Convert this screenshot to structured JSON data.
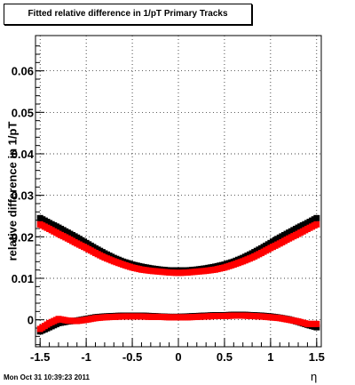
{
  "title": "Fitted relative difference in 1/pT  Primary Tracks",
  "footer_timestamp": "Mon Oct 31 10:39:23 2011",
  "colors": {
    "series_black": "#000000",
    "series_red": "#ff0000",
    "grid": "#000000"
  },
  "chart_data": {
    "type": "scatter",
    "title": "Fitted relative difference in 1/pT  Primary Tracks",
    "xlabel": "η",
    "ylabel": "relative difference in 1/pT",
    "xlim": [
      -1.55,
      1.55
    ],
    "ylim": [
      -0.0065,
      0.0685
    ],
    "x_ticks": [
      -1.5,
      -1,
      -0.5,
      0,
      0.5,
      1,
      1.5
    ],
    "x_tick_labels": [
      "-1.5",
      "-1",
      "-0.5",
      "0",
      "0.5",
      "1",
      "1.5"
    ],
    "y_ticks": [
      0,
      0.01,
      0.02,
      0.03,
      0.04,
      0.05,
      0.06
    ],
    "y_tick_labels": [
      "0",
      "0.01",
      "0.02",
      "0.03",
      "0.04",
      "0.05",
      "0.06"
    ],
    "grid": true,
    "series": [
      {
        "color": "#000000",
        "x": [
          -1.5,
          -1.4,
          -1.3,
          -1.2,
          -1.1,
          -1.0,
          -0.9,
          -0.8,
          -0.7,
          -0.6,
          -0.5,
          -0.4,
          -0.3,
          -0.2,
          -0.1,
          0.0,
          0.1,
          0.2,
          0.3,
          0.4,
          0.5,
          0.6,
          0.7,
          0.8,
          0.9,
          1.0,
          1.1,
          1.2,
          1.3,
          1.4,
          1.5
        ],
        "y": [
          0.0245,
          0.0233,
          0.0222,
          0.021,
          0.0198,
          0.0185,
          0.0172,
          0.016,
          0.0149,
          0.014,
          0.0133,
          0.0128,
          0.0124,
          0.0121,
          0.0119,
          0.0119,
          0.0119,
          0.0121,
          0.0124,
          0.0128,
          0.0133,
          0.014,
          0.0149,
          0.016,
          0.0172,
          0.0185,
          0.0198,
          0.021,
          0.0222,
          0.0233,
          0.0245
        ]
      },
      {
        "color": "#ff0000",
        "x": [
          -1.5,
          -1.4,
          -1.3,
          -1.2,
          -1.1,
          -1.0,
          -0.9,
          -0.8,
          -0.7,
          -0.6,
          -0.5,
          -0.4,
          -0.3,
          -0.2,
          -0.1,
          0.0,
          0.1,
          0.2,
          0.3,
          0.4,
          0.5,
          0.6,
          0.7,
          0.8,
          0.9,
          1.0,
          1.1,
          1.2,
          1.3,
          1.4,
          1.5
        ],
        "y": [
          0.023,
          0.0219,
          0.0207,
          0.0196,
          0.0184,
          0.0173,
          0.0161,
          0.015,
          0.0141,
          0.0133,
          0.0126,
          0.0121,
          0.0118,
          0.0116,
          0.0114,
          0.0113,
          0.0114,
          0.0116,
          0.0118,
          0.0121,
          0.0126,
          0.0133,
          0.0141,
          0.015,
          0.0161,
          0.0173,
          0.0184,
          0.0196,
          0.0207,
          0.0219,
          0.023
        ]
      },
      {
        "color": "#000000",
        "x": [
          -1.5,
          -1.4,
          -1.3,
          -1.2,
          -1.1,
          -1.0,
          -0.9,
          -0.8,
          -0.7,
          -0.6,
          -0.5,
          -0.4,
          -0.3,
          -0.2,
          -0.1,
          0.0,
          0.1,
          0.2,
          0.3,
          0.4,
          0.5,
          0.6,
          0.7,
          0.8,
          0.9,
          1.0,
          1.1,
          1.2,
          1.3,
          1.4,
          1.5
        ],
        "y": [
          -0.0028,
          -0.0018,
          -0.0008,
          -0.0004,
          -0.0002,
          0.0002,
          0.0006,
          0.0008,
          0.0009,
          0.001,
          0.001,
          0.001,
          0.0009,
          0.0008,
          0.0007,
          0.0007,
          0.0008,
          0.0009,
          0.001,
          0.0011,
          0.0011,
          0.0012,
          0.0012,
          0.0011,
          0.001,
          0.0008,
          0.0005,
          0.0001,
          -0.0005,
          -0.0012,
          -0.0018
        ]
      },
      {
        "color": "#ff0000",
        "x": [
          -1.5,
          -1.4,
          -1.3,
          -1.2,
          -1.1,
          -1.0,
          -0.9,
          -0.8,
          -0.7,
          -0.6,
          -0.5,
          -0.4,
          -0.3,
          -0.2,
          -0.1,
          0.0,
          0.1,
          0.2,
          0.3,
          0.4,
          0.5,
          0.6,
          0.7,
          0.8,
          0.9,
          1.0,
          1.1,
          1.2,
          1.3,
          1.4,
          1.5
        ],
        "y": [
          -0.0022,
          -0.0008,
          0.0002,
          -0.0002,
          -0.0003,
          0.0,
          0.0004,
          0.0006,
          0.0007,
          0.0008,
          0.0008,
          0.0008,
          0.0007,
          0.0007,
          0.0006,
          0.0006,
          0.0006,
          0.0007,
          0.0008,
          0.0009,
          0.0009,
          0.001,
          0.001,
          0.0009,
          0.0008,
          0.0006,
          0.0004,
          0.0,
          -0.0004,
          -0.001,
          -0.001
        ]
      }
    ]
  }
}
